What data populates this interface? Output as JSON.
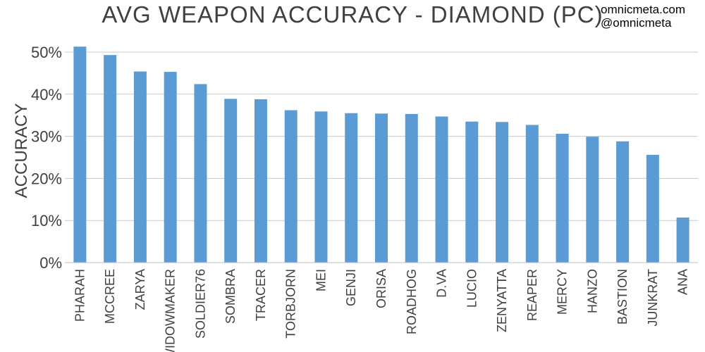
{
  "title": "AVG WEAPON ACCURACY - DIAMOND (PC)",
  "credits": {
    "site": "omnicmeta.com",
    "handle": "@omnicmeta"
  },
  "chart_data": {
    "type": "bar",
    "title": "AVG WEAPON ACCURACY - DIAMOND (PC)",
    "xlabel": "",
    "ylabel": "ACCURACY",
    "ylim": [
      0,
      50
    ],
    "yticks": [
      0,
      10,
      20,
      30,
      40,
      50
    ],
    "ytick_labels": [
      "0%",
      "10%",
      "20%",
      "30%",
      "40%",
      "50%"
    ],
    "grid": true,
    "legend": "none",
    "bar_color": "#5b9bd5",
    "categories": [
      "PHARAH",
      "MCCREE",
      "ZARYA",
      "WIDOWMAKER",
      "SOLDIER76",
      "SOMBRA",
      "TRACER",
      "TORBJORN",
      "MEI",
      "GENJI",
      "ORISA",
      "ROADHOG",
      "D.VA",
      "LUCIO",
      "ZENYATTA",
      "REAPER",
      "MERCY",
      "HANZO",
      "BASTION",
      "JUNKRAT",
      "ANA"
    ],
    "values": [
      51.3,
      49.3,
      45.4,
      45.3,
      42.4,
      38.9,
      38.8,
      36.2,
      35.9,
      35.5,
      35.4,
      35.3,
      34.7,
      33.5,
      33.4,
      32.7,
      30.6,
      29.9,
      28.8,
      25.6,
      10.7
    ]
  }
}
